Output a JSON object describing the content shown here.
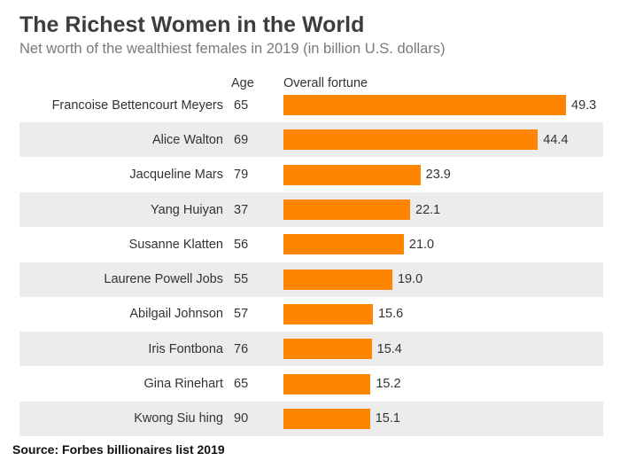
{
  "header": {
    "title": "The Richest Women in the World",
    "subtitle": "Net worth of the wealthiest females in 2019 (in billion U.S. dollars)"
  },
  "columns": {
    "age": "Age",
    "fortune": "Overall fortune"
  },
  "source": "Source: Forbes billionaires list 2019",
  "colors": {
    "bar": "#ff8400",
    "band": "#ececec"
  },
  "chart_data": {
    "type": "bar",
    "orientation": "horizontal",
    "title": "The Richest Women in the World",
    "subtitle": "Net worth of the wealthiest females in 2019 (in billion U.S. dollars)",
    "categories": [
      "Francoise Bettencourt Meyers",
      "Alice Walton",
      "Jacqueline Mars",
      "Yang Huiyan",
      "Susanne Klatten",
      "Laurene Powell Jobs",
      "Abilgail Johnson",
      "Iris Fontbona",
      "Gina Rinehart",
      "Kwong Siu hing"
    ],
    "ages": [
      "65",
      "69",
      "79",
      "37",
      "56",
      "55",
      "57",
      "76",
      "65",
      "90"
    ],
    "values": [
      49.3,
      44.4,
      23.9,
      22.1,
      21.0,
      19.0,
      15.6,
      15.4,
      15.2,
      15.1
    ],
    "value_labels": [
      "49.3",
      "44.4",
      "23.9",
      "22.1",
      "21.0",
      "19.0",
      "15.6",
      "15.4",
      "15.2",
      "15.1"
    ],
    "xlim": [
      0,
      49.3
    ],
    "grid": false,
    "legend": "none"
  }
}
